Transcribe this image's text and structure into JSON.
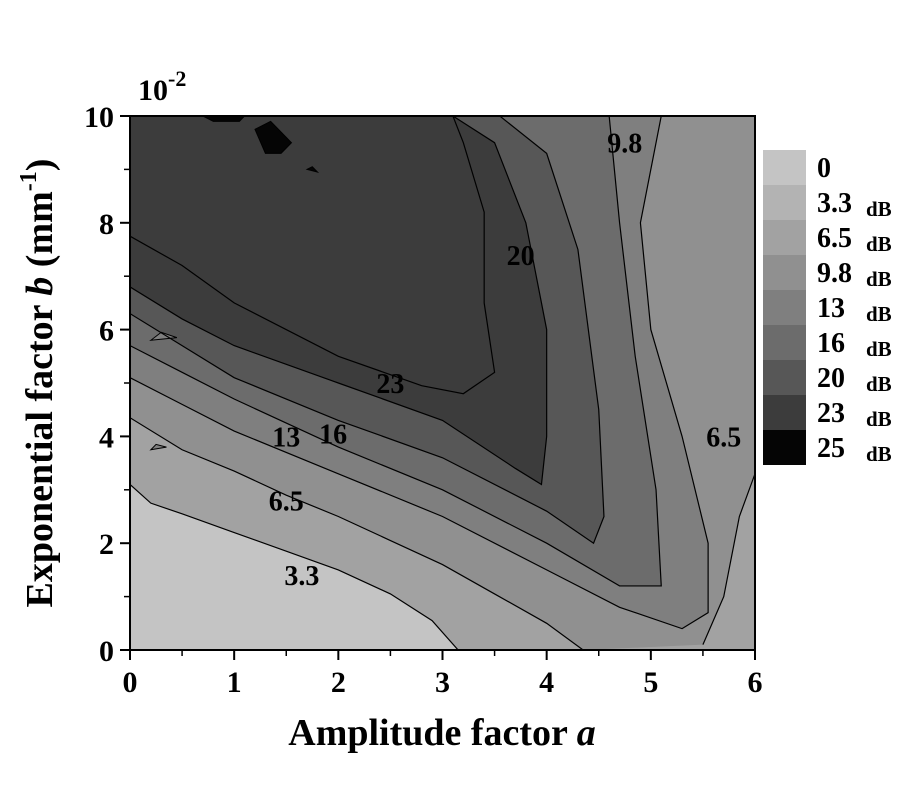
{
  "chart_data": {
    "type": "heatmap",
    "subtype": "filled contour plot",
    "xlabel": "Amplitude factor",
    "xlabel_var": "a",
    "ylabel": "Exponential factor",
    "ylabel_var": "b",
    "ylabel_unit_open": "(mm",
    "ylabel_unit_exp": "-1",
    "ylabel_unit_close": ")",
    "y_multiplier_base": "10",
    "y_multiplier_exp": "-2",
    "xlim": [
      0,
      6
    ],
    "ylim": [
      0,
      10
    ],
    "x_ticks": [
      "0",
      "1",
      "2",
      "3",
      "4",
      "5",
      "6"
    ],
    "y_ticks": [
      "0",
      "2",
      "4",
      "6",
      "8",
      "10"
    ],
    "grid": false,
    "colorbar": {
      "position": "right",
      "unit": "dB",
      "levels": [
        {
          "label": "0",
          "unit": "",
          "color": "#c4c4c4"
        },
        {
          "label": "3.3",
          "unit": "dB",
          "color": "#b3b3b3"
        },
        {
          "label": "6.5",
          "unit": "dB",
          "color": "#a2a2a2"
        },
        {
          "label": "9.8",
          "unit": "dB",
          "color": "#909090"
        },
        {
          "label": "13",
          "unit": "dB",
          "color": "#7f7f7f"
        },
        {
          "label": "16",
          "unit": "dB",
          "color": "#6c6c6c"
        },
        {
          "label": "20",
          "unit": "dB",
          "color": "#575757"
        },
        {
          "label": "23",
          "unit": "dB",
          "color": "#3c3c3c"
        },
        {
          "label": "25",
          "unit": "dB",
          "color": "#050505"
        }
      ]
    },
    "contour_labels": [
      {
        "text": "3.3",
        "a": 1.65,
        "b": 1.4
      },
      {
        "text": "6.5",
        "a": 1.5,
        "b": 2.8
      },
      {
        "text": "13",
        "a": 1.5,
        "b": 4.0
      },
      {
        "text": "16",
        "a": 1.95,
        "b": 4.05
      },
      {
        "text": "23",
        "a": 2.5,
        "b": 5.0
      },
      {
        "text": "20",
        "a": 3.75,
        "b": 7.4
      },
      {
        "text": "9.8",
        "a": 4.75,
        "b": 9.5
      },
      {
        "text": "6.5",
        "a": 5.7,
        "b": 4.0
      }
    ],
    "contours": [
      {
        "level": "3.3",
        "points": [
          [
            0,
            3.1
          ],
          [
            0.2,
            2.75
          ],
          [
            0.5,
            2.55
          ],
          [
            1.0,
            2.2
          ],
          [
            1.5,
            1.85
          ],
          [
            2.0,
            1.5
          ],
          [
            2.5,
            1.05
          ],
          [
            2.9,
            0.55
          ],
          [
            3.15,
            0
          ]
        ]
      },
      {
        "level": "6.5",
        "points": [
          [
            0,
            4.35
          ],
          [
            0.5,
            3.75
          ],
          [
            1.0,
            3.35
          ],
          [
            1.5,
            2.9
          ],
          [
            2.0,
            2.5
          ],
          [
            2.5,
            2.05
          ],
          [
            3.0,
            1.6
          ],
          [
            3.5,
            1.05
          ],
          [
            4.0,
            0.5
          ],
          [
            4.35,
            0
          ]
        ],
        "then": [
          [
            5.5,
            0.1
          ],
          [
            5.7,
            1.0
          ],
          [
            5.85,
            2.5
          ],
          [
            6.0,
            3.3
          ]
        ]
      },
      {
        "level": "9.8",
        "points": [
          [
            0,
            5.1
          ],
          [
            0.5,
            4.6
          ],
          [
            1.0,
            4.1
          ],
          [
            2.0,
            3.3
          ],
          [
            3.0,
            2.5
          ],
          [
            4.0,
            1.5
          ],
          [
            4.7,
            0.8
          ],
          [
            5.3,
            0.4
          ],
          [
            5.55,
            0.7
          ],
          [
            5.55,
            2.0
          ],
          [
            5.3,
            4.0
          ],
          [
            5.0,
            6.0
          ],
          [
            4.9,
            8.0
          ],
          [
            5.1,
            10.0
          ]
        ]
      },
      {
        "level": "13",
        "points": [
          [
            0,
            5.7
          ],
          [
            0.5,
            5.2
          ],
          [
            1.0,
            4.7
          ],
          [
            2.0,
            3.8
          ],
          [
            3.0,
            3.0
          ],
          [
            4.0,
            2.0
          ],
          [
            4.7,
            1.2
          ],
          [
            5.1,
            1.2
          ],
          [
            5.05,
            3.0
          ],
          [
            4.85,
            5.5
          ],
          [
            4.7,
            8.0
          ],
          [
            4.6,
            10.0
          ]
        ]
      },
      {
        "level": "16",
        "points": [
          [
            0,
            6.3
          ],
          [
            0.5,
            5.7
          ],
          [
            1.0,
            5.1
          ],
          [
            2.0,
            4.3
          ],
          [
            3.0,
            3.6
          ],
          [
            4.0,
            2.6
          ],
          [
            4.45,
            2.0
          ],
          [
            4.55,
            2.5
          ],
          [
            4.5,
            4.5
          ],
          [
            4.3,
            7.5
          ],
          [
            4.0,
            9.3
          ],
          [
            3.55,
            10.0
          ]
        ]
      },
      {
        "level": "20",
        "points": [
          [
            0,
            6.8
          ],
          [
            0.5,
            6.2
          ],
          [
            1.0,
            5.7
          ],
          [
            2.0,
            5.0
          ],
          [
            3.0,
            4.3
          ],
          [
            3.7,
            3.4
          ],
          [
            3.95,
            3.1
          ],
          [
            4.0,
            4.0
          ],
          [
            4.0,
            6.0
          ],
          [
            3.8,
            8.0
          ],
          [
            3.5,
            9.5
          ],
          [
            3.1,
            10.0
          ]
        ]
      },
      {
        "level": "23",
        "points": [
          [
            0,
            7.75
          ],
          [
            0.5,
            7.2
          ],
          [
            1.0,
            6.5
          ],
          [
            2.0,
            5.5
          ],
          [
            2.8,
            4.95
          ],
          [
            3.2,
            4.8
          ],
          [
            3.5,
            5.2
          ],
          [
            3.4,
            6.5
          ],
          [
            3.4,
            8.2
          ],
          [
            3.2,
            9.5
          ],
          [
            3.1,
            10.0
          ]
        ]
      }
    ]
  }
}
